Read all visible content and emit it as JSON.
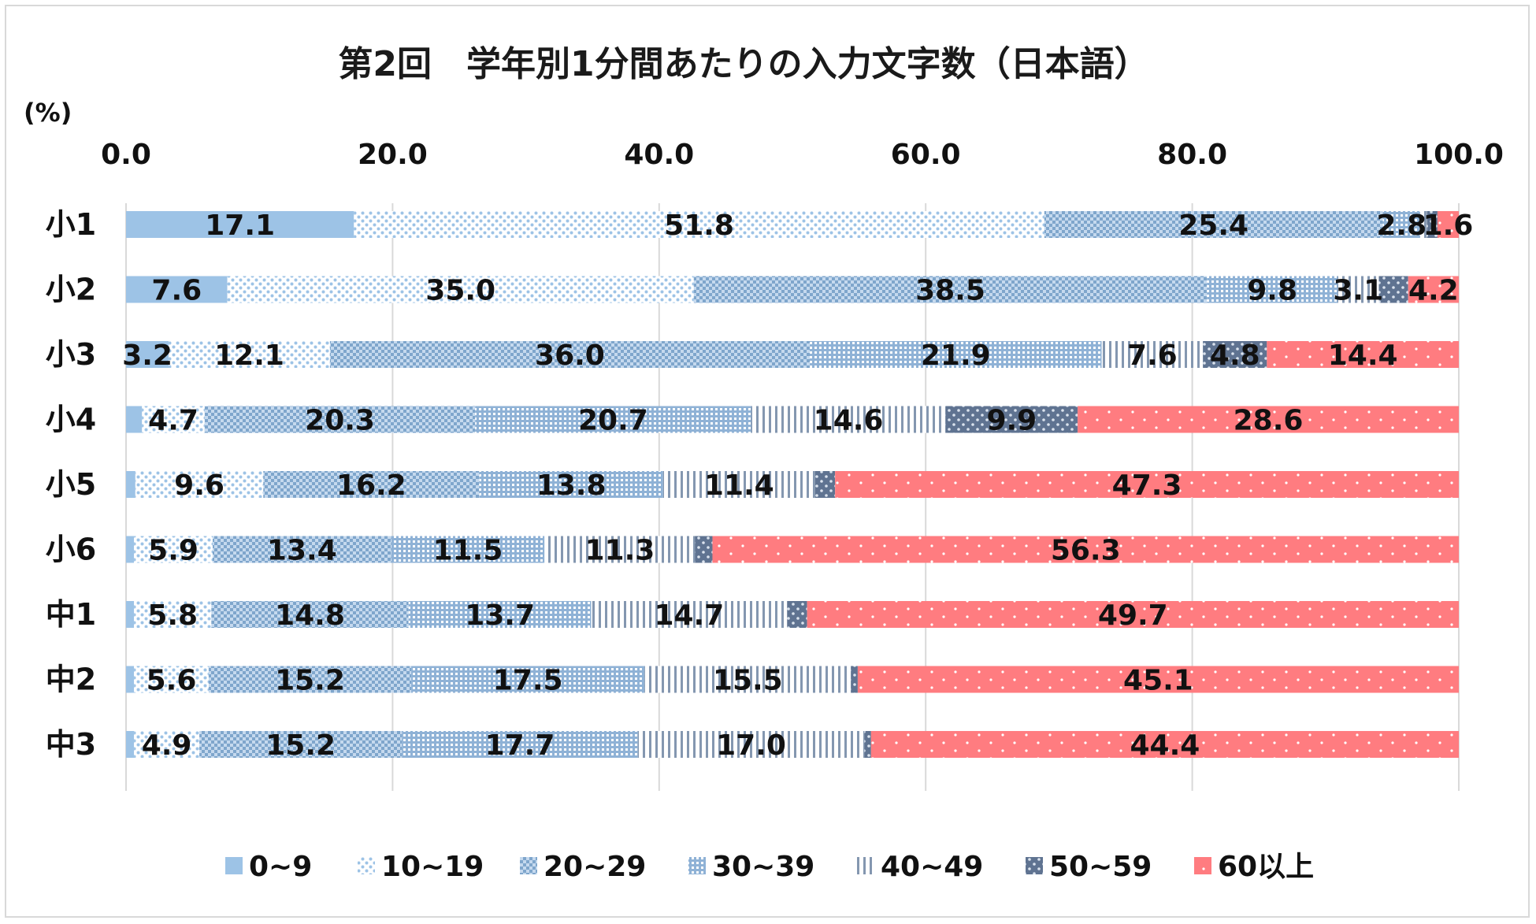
{
  "chart_data": {
    "type": "bar",
    "orientation": "horizontal",
    "stacked": true,
    "title": "第2回　学年別1分間あたりの入力文字数（日本語）",
    "unit_label": "(%)",
    "xlim": [
      0,
      100
    ],
    "x_ticks": [
      "0.0",
      "20.0",
      "40.0",
      "60.0",
      "80.0",
      "100.0"
    ],
    "grid": true,
    "legend_position": "bottom",
    "categories": [
      "小1",
      "小2",
      "小3",
      "小4",
      "小5",
      "小6",
      "中1",
      "中2",
      "中3"
    ],
    "series": [
      {
        "name": "0~9",
        "color": "#9dc3e6",
        "pattern": "solid",
        "values": [
          17.1,
          7.6,
          3.2,
          1.2,
          0.7,
          0.6,
          0.6,
          0.6,
          0.6
        ],
        "labels": [
          "17.1",
          "7.6",
          "3.2",
          "",
          "",
          "",
          "",
          "",
          ""
        ]
      },
      {
        "name": "10~19",
        "color": "#9dc3e6",
        "pattern": "dots",
        "values": [
          51.8,
          35.0,
          12.1,
          4.7,
          9.6,
          5.9,
          5.8,
          5.6,
          4.9
        ],
        "labels": [
          "51.8",
          "35.0",
          "12.1",
          "4.7",
          "9.6",
          "5.9",
          "5.8",
          "5.6",
          "4.9"
        ]
      },
      {
        "name": "20~29",
        "color": "#7fa6cc",
        "pattern": "checker",
        "values": [
          25.4,
          38.5,
          36.0,
          20.3,
          16.2,
          13.4,
          14.8,
          15.2,
          15.2
        ],
        "labels": [
          "25.4",
          "38.5",
          "36.0",
          "20.3",
          "16.2",
          "13.4",
          "14.8",
          "15.2",
          "15.2"
        ]
      },
      {
        "name": "30~39",
        "color": "#7fa6cc",
        "pattern": "grid",
        "values": [
          2.8,
          9.8,
          21.9,
          20.7,
          13.8,
          11.5,
          13.7,
          17.5,
          17.7
        ],
        "labels": [
          "2.8",
          "9.8",
          "21.9",
          "20.7",
          "13.8",
          "11.5",
          "13.7",
          "17.5",
          "17.7"
        ]
      },
      {
        "name": "40~49",
        "color": "#8497b0",
        "pattern": "vlines",
        "values": [
          0.5,
          3.1,
          7.6,
          14.6,
          11.4,
          11.3,
          14.7,
          15.5,
          17.0
        ],
        "labels": [
          "",
          "3.1",
          "7.6",
          "14.6",
          "11.4",
          "11.3",
          "14.7",
          "15.5",
          "17.0"
        ]
      },
      {
        "name": "50~59",
        "color": "#5f7391",
        "pattern": "dots2",
        "values": [
          0.8,
          2.2,
          4.8,
          9.9,
          1.5,
          1.3,
          1.5,
          0.5,
          0.5
        ],
        "labels": [
          "",
          "",
          "4.8",
          "9.9",
          "",
          "",
          "",
          "",
          ""
        ]
      },
      {
        "name": "60以上",
        "color": "#ff7c80",
        "pattern": "sparse",
        "values": [
          1.6,
          4.2,
          14.4,
          28.6,
          47.3,
          56.3,
          49.7,
          45.1,
          44.4
        ],
        "labels": [
          "1.6",
          "4.2",
          "14.4",
          "28.6",
          "47.3",
          "56.3",
          "49.7",
          "45.1",
          "44.4"
        ]
      }
    ]
  }
}
